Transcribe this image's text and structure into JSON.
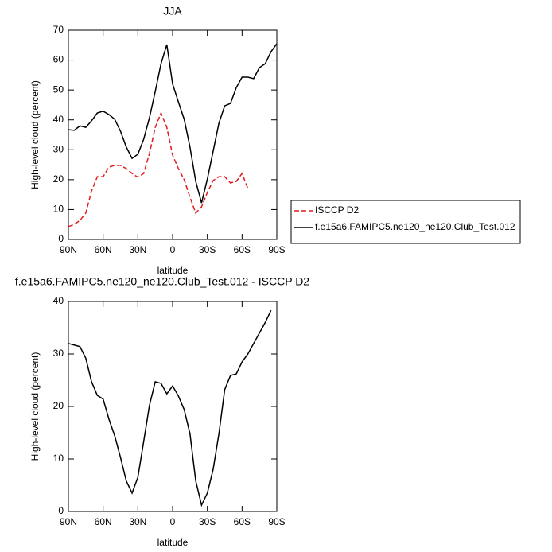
{
  "chart_data": [
    {
      "type": "line",
      "title": "JJA",
      "xlabel": "latitude",
      "ylabel": "High-level cloud (percent)",
      "x": [
        90,
        85,
        80,
        75,
        70,
        65,
        60,
        55,
        50,
        45,
        40,
        35,
        30,
        25,
        20,
        15,
        10,
        5,
        0,
        -5,
        -10,
        -15,
        -20,
        -25,
        -30,
        -35,
        -40,
        -45,
        -50,
        -55,
        -60,
        -65,
        -70,
        -75,
        -80,
        -85,
        -90
      ],
      "series": [
        {
          "name": "ISCCP D2",
          "color": "#e41a1c",
          "style": "dashed",
          "values": [
            4.3,
            5,
            6.4,
            8.8,
            16.2,
            21,
            21,
            24.2,
            24.8,
            24.8,
            23.7,
            22.1,
            20.8,
            22.1,
            28.7,
            37.5,
            42.3,
            37.5,
            28.2,
            23.7,
            20,
            14.1,
            8.8,
            10.9,
            15.7,
            19.7,
            21,
            21,
            18.9,
            19.4,
            22.1,
            17,
            null,
            null,
            null,
            null,
            null
          ]
        },
        {
          "name": "f.e15a6.FAMIPC5.ne120_ne120.Club_Test.012",
          "color": "#000000",
          "style": "solid",
          "values": [
            36.7,
            36.5,
            38,
            37.5,
            39.7,
            42.3,
            42.9,
            41.8,
            40.2,
            36.2,
            30.9,
            27.1,
            28.5,
            33.5,
            40.7,
            49.5,
            58.8,
            65.2,
            52,
            46,
            40.2,
            30.9,
            19.4,
            12.2,
            20.2,
            29.5,
            38.9,
            44.7,
            45.5,
            50.8,
            54.3,
            54.3,
            53.8,
            57.5,
            58.8,
            62.8,
            65.5
          ]
        }
      ],
      "xlim": [
        90,
        -90
      ],
      "xticks": [
        {
          "value": 90,
          "label": "90N"
        },
        {
          "value": 60,
          "label": "60N"
        },
        {
          "value": 30,
          "label": "30N"
        },
        0,
        {
          "value": -30,
          "label": "30S"
        },
        {
          "value": -60,
          "label": "60S"
        },
        {
          "value": -90,
          "label": "90S"
        }
      ],
      "ylim": [
        0,
        70
      ],
      "yticks": [
        0,
        10,
        20,
        30,
        40,
        50,
        60,
        70
      ],
      "legend": "outside-right"
    },
    {
      "type": "line",
      "title": "f.e15a6.FAMIPC5.ne120_ne120.Club_Test.012 - ISCCP D2",
      "xlabel": "latitude",
      "ylabel": "High-level cloud (percent)",
      "x": [
        90,
        85,
        80,
        75,
        70,
        65,
        60,
        55,
        50,
        45,
        40,
        35,
        30,
        25,
        20,
        15,
        10,
        5,
        0,
        -5,
        -10,
        -15,
        -20,
        -25,
        -30,
        -35,
        -40,
        -45,
        -50,
        -55,
        -60,
        -65,
        -70,
        -75,
        -80,
        -85,
        -90
      ],
      "series": [
        {
          "color": "#000000",
          "style": "solid",
          "values": [
            32,
            31.7,
            31.4,
            29.2,
            24.7,
            22.1,
            21.4,
            17.6,
            14.4,
            10.3,
            5.8,
            3.5,
            6.5,
            13.3,
            20.2,
            24.7,
            24.4,
            22.4,
            23.9,
            22,
            19.4,
            14.8,
            5.8,
            1.2,
            3.5,
            8,
            14.8,
            23.2,
            25.9,
            26.2,
            28.5,
            30,
            32,
            34,
            36,
            38.3,
            null
          ]
        }
      ],
      "xlim": [
        90,
        -90
      ],
      "xticks": [
        {
          "value": 90,
          "label": "90N"
        },
        {
          "value": 60,
          "label": "60N"
        },
        {
          "value": 30,
          "label": "30N"
        },
        0,
        {
          "value": -30,
          "label": "30S"
        },
        {
          "value": -60,
          "label": "60S"
        },
        {
          "value": -90,
          "label": "90S"
        }
      ],
      "ylim": [
        0,
        40
      ],
      "yticks": [
        0,
        10,
        20,
        30,
        40
      ]
    }
  ]
}
